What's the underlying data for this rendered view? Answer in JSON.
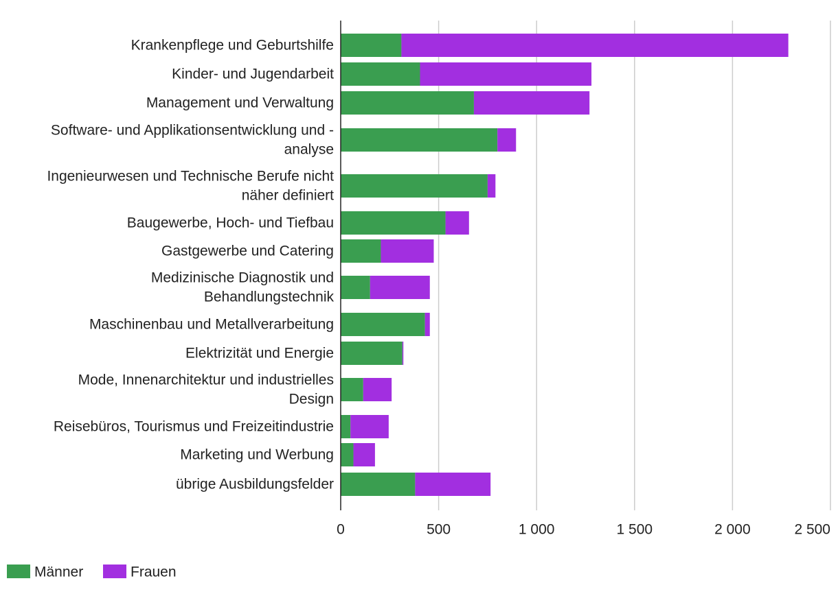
{
  "chart_data": {
    "type": "bar",
    "orientation": "horizontal",
    "stacked": true,
    "categories": [
      "Krankenpflege und Geburtshilfe",
      "Kinder- und Jugendarbeit",
      "Management und Verwaltung",
      "Software- und Applikationsentwicklung und -analyse",
      "Ingenieurwesen und Technische Berufe nicht näher definiert",
      "Baugewerbe, Hoch- und Tiefbau",
      "Gastgewerbe und Catering",
      "Medizinische Diagnostik und Behandlungstechnik",
      "Maschinenbau und Metallverarbeitung",
      "Elektrizität und Energie",
      "Mode, Innenarchitektur und industrielles Design",
      "Reisebüros, Tourismus und Freizeitindustrie",
      "Marketing und Werbung",
      "übrige Ausbildungsfelder"
    ],
    "category_lines": [
      [
        "Krankenpflege und Geburtshilfe"
      ],
      [
        "Kinder- und Jugendarbeit"
      ],
      [
        "Management und Verwaltung"
      ],
      [
        "Software- und Applikationsentwicklung und -",
        "analyse"
      ],
      [
        "Ingenieurwesen und Technische Berufe nicht",
        "näher definiert"
      ],
      [
        "Baugewerbe, Hoch- und Tiefbau"
      ],
      [
        "Gastgewerbe und Catering"
      ],
      [
        "Medizinische Diagnostik und",
        "Behandlungstechnik"
      ],
      [
        "Maschinenbau und Metallverarbeitung"
      ],
      [
        "Elektrizität und Energie"
      ],
      [
        "Mode, Innenarchitektur und industrielles",
        "Design"
      ],
      [
        "Reisebüros, Tourismus und Freizeitindustrie"
      ],
      [
        "Marketing und Werbung"
      ],
      [
        "übrige Ausbildungsfelder"
      ]
    ],
    "series": [
      {
        "name": "Männer",
        "color": "#3a9e50",
        "values": [
          310,
          405,
          680,
          800,
          750,
          535,
          205,
          150,
          430,
          315,
          115,
          50,
          65,
          380
        ]
      },
      {
        "name": "Frauen",
        "color": "#a22fe0",
        "values": [
          1975,
          875,
          590,
          95,
          40,
          120,
          270,
          305,
          25,
          5,
          145,
          195,
          110,
          385
        ]
      }
    ],
    "xlim": [
      0,
      2500
    ],
    "xticks": [
      0,
      500,
      1000,
      1500,
      2000,
      2500
    ],
    "xtick_labels": [
      "0",
      "500",
      "1 000",
      "1 500",
      "2 000",
      "2 500"
    ],
    "grid": true,
    "legend_position": "bottom-left"
  }
}
